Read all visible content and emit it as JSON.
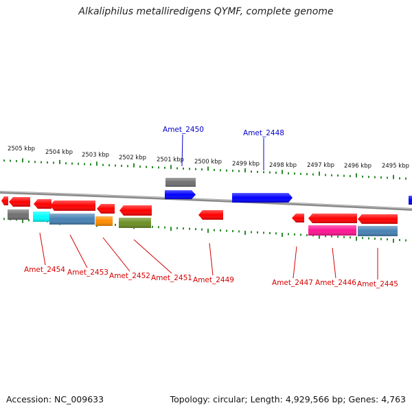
{
  "title": "Alkaliphilus metalliredigens QYMF, complete genome",
  "footer": {
    "accession": "Accession: NC_009633",
    "topology": "Topology: circular; Length: 4,929,566 bp; Genes: 4,763"
  },
  "colors": {
    "forward_label": "#0000c8",
    "reverse_label": "#d40000",
    "tick": "#2a8a2a",
    "backbone": "#8a8a8a"
  },
  "scale_labels": [
    "2505 kbp",
    "2504 kbp",
    "2503 kbp",
    "2502 kbp",
    "2501 kbp",
    "2500 kbp",
    "2499 kbp",
    "2498 kbp",
    "2497 kbp",
    "2496 kbp",
    "2495 kbp"
  ],
  "gene_labels_top": [
    "Amet_2450",
    "Amet_2448"
  ],
  "gene_labels_bottom": [
    "Amet_2454",
    "Amet_2453",
    "Amet_2452",
    "Amet_2451",
    "Amet_2449",
    "Amet_2447",
    "Amet_2446",
    "Amet_2445"
  ],
  "feature_colors": [
    "#ff0000",
    "#0000ff",
    "#707070",
    "#00ffff",
    "#4682b4",
    "#ff8c00",
    "#6b8e23",
    "#ff1493"
  ]
}
